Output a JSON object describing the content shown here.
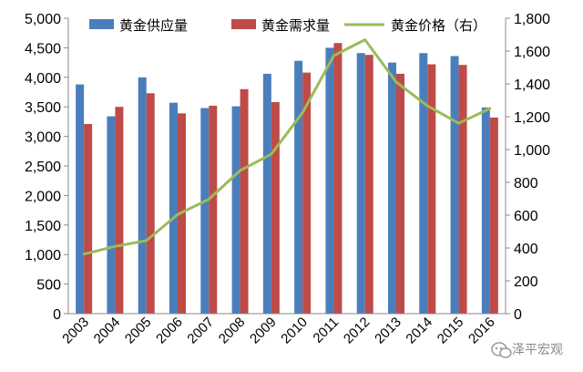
{
  "chart_data": {
    "type": "bar",
    "categories": [
      "2003",
      "2004",
      "2005",
      "2006",
      "2007",
      "2008",
      "2009",
      "2010",
      "2011",
      "2012",
      "2013",
      "2014",
      "2015",
      "2016"
    ],
    "series": [
      {
        "name": "黄金供应量",
        "kind": "bar",
        "axis": "left",
        "color": "#4a7ebb",
        "values": [
          3880,
          3340,
          4000,
          3570,
          3480,
          3510,
          4060,
          4280,
          4500,
          4410,
          4250,
          4410,
          4360,
          3490
        ]
      },
      {
        "name": "黄金需求量",
        "kind": "bar",
        "axis": "left",
        "color": "#be4b48",
        "values": [
          3210,
          3500,
          3730,
          3390,
          3520,
          3800,
          3580,
          4080,
          4580,
          4380,
          4060,
          4220,
          4210,
          3320
        ]
      },
      {
        "name": "黄金价格（右）",
        "kind": "line",
        "axis": "right",
        "color": "#9bbb59",
        "values": [
          363,
          410,
          445,
          604,
          697,
          872,
          972,
          1225,
          1572,
          1669,
          1411,
          1266,
          1160,
          1250
        ]
      }
    ],
    "left_axis": {
      "ylim": [
        0,
        5000
      ],
      "ticks": [
        "0",
        "500",
        "1,000",
        "1,500",
        "2,000",
        "2,500",
        "3,000",
        "3,500",
        "4,000",
        "4,500",
        "5,000"
      ]
    },
    "right_axis": {
      "ylim": [
        0,
        1800
      ],
      "ticks": [
        "0",
        "200",
        "400",
        "600",
        "800",
        "1,000",
        "1,200",
        "1,400",
        "1,600",
        "1,800"
      ]
    },
    "legend_position": "top",
    "grid": false
  },
  "watermark": {
    "text": "泽平宏观",
    "icon": "wechat-icon"
  }
}
